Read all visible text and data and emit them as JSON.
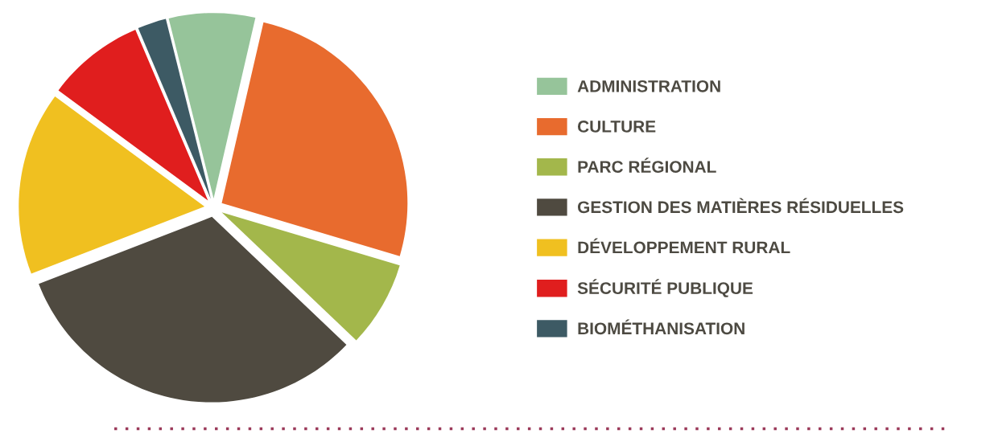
{
  "chart_data": {
    "type": "pie",
    "categories": [
      "ADMINISTRATION",
      "CULTURE",
      "PARC RÉGIONAL",
      "GESTION DES MATIÈRES RÉSIDUELLES",
      "DÉVELOPPEMENT RURAL",
      "SÉCURITÉ PUBLIQUE",
      "BIOMÉTHANISATION"
    ],
    "values": [
      7.5,
      26,
      7.5,
      32,
      16,
      8.5,
      2.5
    ],
    "colors": [
      "#96c49a",
      "#e86b2e",
      "#a3b74b",
      "#4f4a40",
      "#f0c020",
      "#e01e1e",
      "#3d5a64"
    ],
    "legend": "right"
  }
}
